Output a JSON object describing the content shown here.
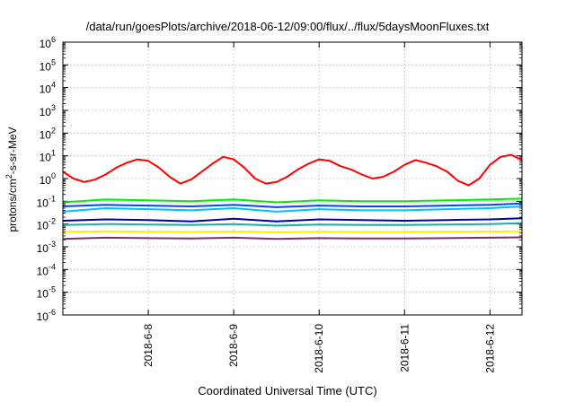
{
  "chart_data": {
    "type": "line",
    "title": "/data/run/goesPlots/archive/2018-06-12/09:00/flux/../flux/5daysMoonFluxes.txt",
    "xlabel": "Coordinated Universal Time (UTC)",
    "ylabel_prefix": "protons/cm",
    "ylabel_sup": "2",
    "ylabel_suffix": "-s-sr-MeV",
    "xlim": [
      "2018-06-07T00:00",
      "2018-06-12T09:00"
    ],
    "ylim": [
      1e-06,
      1000000.0
    ],
    "yscale": "log",
    "grid": true,
    "x_ticks": [
      "2018-6-8",
      "2018-6-9",
      "2018-6-10",
      "2018-6-11",
      "2018-6-12"
    ],
    "x_tick_dates": [
      "2018-06-08",
      "2018-06-09",
      "2018-06-10",
      "2018-06-11",
      "2018-06-12"
    ],
    "y_ticks": [
      {
        "base": "10",
        "exp": "-6"
      },
      {
        "base": "10",
        "exp": "-5"
      },
      {
        "base": "10",
        "exp": "-4"
      },
      {
        "base": "10",
        "exp": "-3"
      },
      {
        "base": "10",
        "exp": "-2"
      },
      {
        "base": "10",
        "exp": "-1"
      },
      {
        "base": "10",
        "exp": "0"
      },
      {
        "base": "10",
        "exp": "1"
      },
      {
        "base": "10",
        "exp": "2"
      },
      {
        "base": "10",
        "exp": "3"
      },
      {
        "base": "10",
        "exp": "4"
      },
      {
        "base": "10",
        "exp": "5"
      },
      {
        "base": "10",
        "exp": "6"
      }
    ],
    "series": [
      {
        "color": "#ff0000",
        "x": [
          "2018-06-07T00:00",
          "2018-06-07T03:00",
          "2018-06-07T06:00",
          "2018-06-07T09:00",
          "2018-06-07T12:00",
          "2018-06-07T15:00",
          "2018-06-07T18:00",
          "2018-06-07T21:00",
          "2018-06-08T00:00",
          "2018-06-08T03:00",
          "2018-06-08T06:00",
          "2018-06-08T09:00",
          "2018-06-08T12:00",
          "2018-06-08T15:00",
          "2018-06-08T18:00",
          "2018-06-08T21:00",
          "2018-06-09T00:00",
          "2018-06-09T03:00",
          "2018-06-09T06:00",
          "2018-06-09T09:00",
          "2018-06-09T12:00",
          "2018-06-09T15:00",
          "2018-06-09T18:00",
          "2018-06-09T21:00",
          "2018-06-10T00:00",
          "2018-06-10T03:00",
          "2018-06-10T06:00",
          "2018-06-10T09:00",
          "2018-06-10T12:00",
          "2018-06-10T15:00",
          "2018-06-10T18:00",
          "2018-06-10T21:00",
          "2018-06-11T00:00",
          "2018-06-11T03:00",
          "2018-06-11T06:00",
          "2018-06-11T09:00",
          "2018-06-11T12:00",
          "2018-06-11T15:00",
          "2018-06-11T18:00",
          "2018-06-11T21:00",
          "2018-06-12T00:00",
          "2018-06-12T03:00",
          "2018-06-12T06:00",
          "2018-06-12T09:00"
        ],
        "values": [
          2.0,
          1.0,
          0.7,
          0.9,
          1.5,
          3,
          5,
          7,
          6,
          3,
          1.2,
          0.6,
          0.9,
          2,
          4.5,
          9,
          7,
          3,
          1,
          0.6,
          0.7,
          1.2,
          2.5,
          4.5,
          7,
          6,
          3.5,
          2.5,
          1.5,
          1,
          1.2,
          2,
          4,
          6.5,
          5,
          3.5,
          2,
          0.8,
          0.5,
          1,
          4,
          9,
          11,
          6.5
        ]
      },
      {
        "color": "#00ee00",
        "x": [
          "2018-06-07T00:00",
          "2018-06-07T12:00",
          "2018-06-08T00:00",
          "2018-06-08T12:00",
          "2018-06-09T00:00",
          "2018-06-09T12:00",
          "2018-06-10T00:00",
          "2018-06-10T12:00",
          "2018-06-11T00:00",
          "2018-06-11T12:00",
          "2018-06-12T00:00",
          "2018-06-12T09:00"
        ],
        "values": [
          0.09,
          0.12,
          0.11,
          0.1,
          0.12,
          0.09,
          0.11,
          0.1,
          0.1,
          0.11,
          0.12,
          0.13
        ]
      },
      {
        "color": "#00c0ff",
        "x": [
          "2018-06-07T00:00",
          "2018-06-07T12:00",
          "2018-06-08T00:00",
          "2018-06-08T12:00",
          "2018-06-09T00:00",
          "2018-06-09T12:00",
          "2018-06-10T00:00",
          "2018-06-10T12:00",
          "2018-06-11T00:00",
          "2018-06-11T12:00",
          "2018-06-12T00:00",
          "2018-06-12T09:00"
        ],
        "values": [
          0.035,
          0.05,
          0.045,
          0.04,
          0.05,
          0.035,
          0.045,
          0.04,
          0.04,
          0.045,
          0.05,
          0.06
        ]
      },
      {
        "color": "#0044ff",
        "x": [
          "2018-06-07T00:00",
          "2018-06-07T12:00",
          "2018-06-08T00:00",
          "2018-06-08T12:00",
          "2018-06-09T00:00",
          "2018-06-09T12:00",
          "2018-06-10T00:00",
          "2018-06-10T12:00",
          "2018-06-11T00:00",
          "2018-06-11T12:00",
          "2018-06-12T00:00",
          "2018-06-12T09:00"
        ],
        "values": [
          0.06,
          0.07,
          0.065,
          0.06,
          0.07,
          0.055,
          0.065,
          0.06,
          0.06,
          0.065,
          0.07,
          0.08
        ]
      },
      {
        "color": "#0000aa",
        "x": [
          "2018-06-07T00:00",
          "2018-06-07T12:00",
          "2018-06-08T00:00",
          "2018-06-08T12:00",
          "2018-06-09T00:00",
          "2018-06-09T12:00",
          "2018-06-10T00:00",
          "2018-06-10T12:00",
          "2018-06-11T00:00",
          "2018-06-11T12:00",
          "2018-06-12T00:00",
          "2018-06-12T09:00"
        ],
        "values": [
          0.014,
          0.016,
          0.015,
          0.013,
          0.017,
          0.013,
          0.016,
          0.015,
          0.014,
          0.015,
          0.016,
          0.018
        ]
      },
      {
        "color": "#20b0a0",
        "x": [
          "2018-06-07T00:00",
          "2018-06-07T12:00",
          "2018-06-08T00:00",
          "2018-06-08T12:00",
          "2018-06-09T00:00",
          "2018-06-09T12:00",
          "2018-06-10T00:00",
          "2018-06-10T12:00",
          "2018-06-11T00:00",
          "2018-06-11T12:00",
          "2018-06-12T00:00",
          "2018-06-12T09:00"
        ],
        "values": [
          0.009,
          0.01,
          0.0095,
          0.009,
          0.01,
          0.0085,
          0.0095,
          0.009,
          0.009,
          0.0095,
          0.01,
          0.011
        ]
      },
      {
        "color": "#ffee00",
        "x": [
          "2018-06-07T00:00",
          "2018-06-07T12:00",
          "2018-06-08T00:00",
          "2018-06-08T12:00",
          "2018-06-09T00:00",
          "2018-06-09T12:00",
          "2018-06-10T00:00",
          "2018-06-10T12:00",
          "2018-06-11T00:00",
          "2018-06-11T12:00",
          "2018-06-12T00:00",
          "2018-06-12T09:00"
        ],
        "values": [
          0.0045,
          0.0048,
          0.0046,
          0.0045,
          0.0047,
          0.0044,
          0.0046,
          0.0045,
          0.0045,
          0.0046,
          0.0047,
          0.0048
        ]
      },
      {
        "color": "#7b2d6b",
        "x": [
          "2018-06-07T00:00",
          "2018-06-07T12:00",
          "2018-06-08T00:00",
          "2018-06-08T12:00",
          "2018-06-09T00:00",
          "2018-06-09T12:00",
          "2018-06-10T00:00",
          "2018-06-10T12:00",
          "2018-06-11T00:00",
          "2018-06-11T12:00",
          "2018-06-12T00:00",
          "2018-06-12T09:00"
        ],
        "values": [
          0.0022,
          0.0025,
          0.0024,
          0.0023,
          0.0025,
          0.0022,
          0.0024,
          0.0023,
          0.0023,
          0.0024,
          0.0025,
          0.0026
        ]
      }
    ]
  }
}
